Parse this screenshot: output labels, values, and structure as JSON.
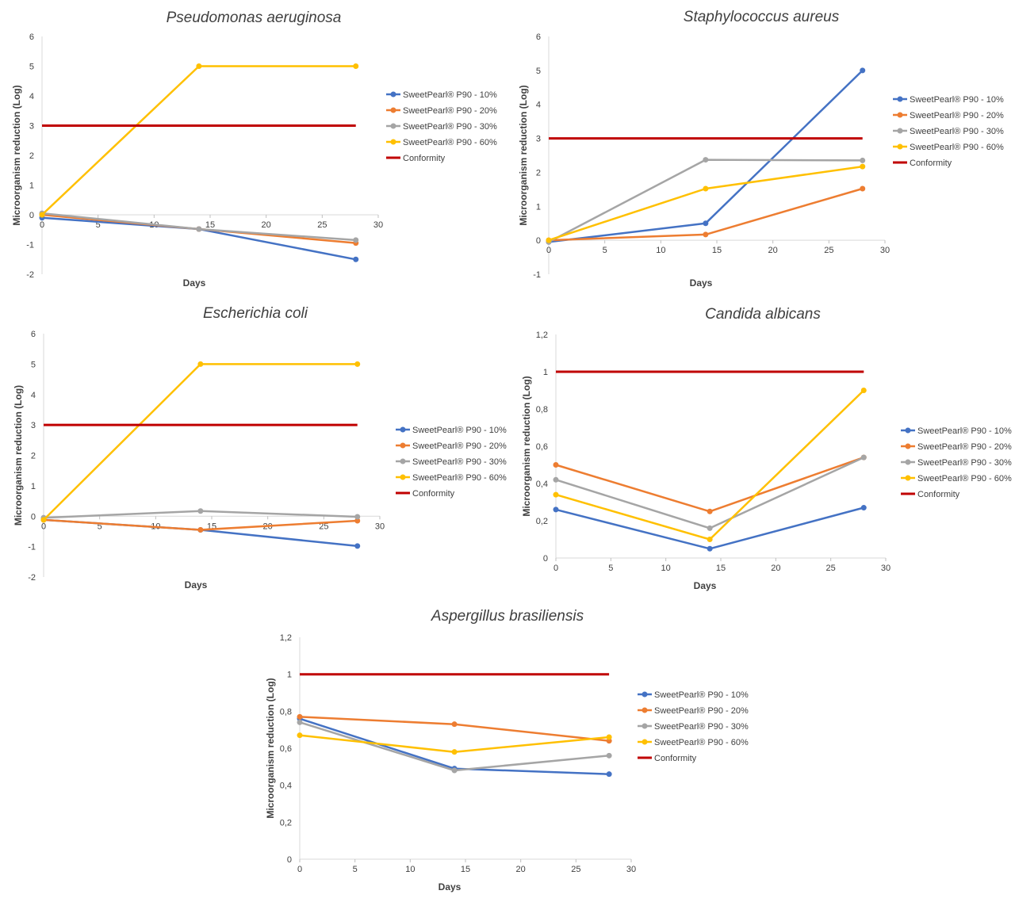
{
  "chart_data": [
    {
      "type": "line",
      "title": "Pseudomonas aeruginosa",
      "xlabel": "Days",
      "ylabel": "Microorganism reduction (Log)",
      "xlim": [
        0,
        30
      ],
      "ylim": [
        -2,
        6
      ],
      "xticks": [
        "0",
        "5",
        "10",
        "15",
        "20",
        "25",
        "30"
      ],
      "yticks": [
        "-2",
        "-1",
        "0",
        "1",
        "2",
        "3",
        "4",
        "5",
        "6"
      ],
      "x": [
        0,
        14,
        28
      ],
      "series": [
        {
          "name": "SweetPearl® P90 - 10%",
          "color": "#4472C4",
          "values": [
            -0.1,
            -0.48,
            -1.5
          ]
        },
        {
          "name": "SweetPearl® P90 - 20%",
          "color": "#ED7D31",
          "values": [
            0.0,
            -0.48,
            -0.95
          ]
        },
        {
          "name": "SweetPearl® P90 - 30%",
          "color": "#A5A5A5",
          "values": [
            0.05,
            -0.48,
            -0.85
          ]
        },
        {
          "name": "SweetPearl® P90 - 60%",
          "color": "#FFC000",
          "values": [
            0.0,
            5.0,
            5.0
          ]
        },
        {
          "name": "Conformity",
          "color": "#C00000",
          "values": [
            3,
            3,
            3
          ],
          "markers": false
        }
      ]
    },
    {
      "type": "line",
      "title": "Staphylococcus aureus",
      "xlabel": "Days",
      "ylabel": "Microorganism reduction (Log)",
      "xlim": [
        0,
        30
      ],
      "ylim": [
        -1,
        6
      ],
      "xticks": [
        "0",
        "5",
        "10",
        "15",
        "20",
        "25",
        "30"
      ],
      "yticks": [
        "-1",
        "0",
        "1",
        "2",
        "3",
        "4",
        "5",
        "6"
      ],
      "x": [
        0,
        14,
        28
      ],
      "series": [
        {
          "name": "SweetPearl® P90 - 10%",
          "color": "#4472C4",
          "values": [
            -0.05,
            0.5,
            5.0
          ]
        },
        {
          "name": "SweetPearl® P90 - 20%",
          "color": "#ED7D31",
          "values": [
            0.0,
            0.17,
            1.52
          ]
        },
        {
          "name": "SweetPearl® P90 - 30%",
          "color": "#A5A5A5",
          "values": [
            -0.05,
            2.37,
            2.35
          ]
        },
        {
          "name": "SweetPearl® P90 - 60%",
          "color": "#FFC000",
          "values": [
            0.0,
            1.52,
            2.17
          ]
        },
        {
          "name": "Conformity",
          "color": "#C00000",
          "values": [
            3,
            3,
            3
          ],
          "markers": false
        }
      ]
    },
    {
      "type": "line",
      "title": "Escherichia coli",
      "xlabel": "Days",
      "ylabel": "Microorganism reduction (Log)",
      "xlim": [
        0,
        30
      ],
      "ylim": [
        -2,
        6
      ],
      "xticks": [
        "0",
        "5",
        "10",
        "15",
        "20",
        "25",
        "30"
      ],
      "yticks": [
        "-2",
        "-1",
        "0",
        "1",
        "2",
        "3",
        "4",
        "5",
        "6"
      ],
      "x": [
        0,
        14,
        28
      ],
      "series": [
        {
          "name": "SweetPearl® P90 - 10%",
          "color": "#4472C4",
          "values": [
            -0.12,
            -0.45,
            -0.98
          ]
        },
        {
          "name": "SweetPearl® P90 - 20%",
          "color": "#ED7D31",
          "values": [
            -0.12,
            -0.45,
            -0.15
          ]
        },
        {
          "name": "SweetPearl® P90 - 30%",
          "color": "#A5A5A5",
          "values": [
            -0.05,
            0.17,
            -0.02
          ]
        },
        {
          "name": "SweetPearl® P90 - 60%",
          "color": "#FFC000",
          "values": [
            -0.12,
            5.0,
            5.0
          ]
        },
        {
          "name": "Conformity",
          "color": "#C00000",
          "values": [
            3,
            3,
            3
          ],
          "markers": false
        }
      ]
    },
    {
      "type": "line",
      "title": "Candida albicans",
      "xlabel": "Days",
      "ylabel": "Microorganism reduction (Log)",
      "xlim": [
        0,
        30
      ],
      "ylim": [
        0,
        1.2
      ],
      "xticks": [
        "0",
        "5",
        "10",
        "15",
        "20",
        "25",
        "30"
      ],
      "yticks": [
        "0",
        "0,2",
        "0,4",
        "0,6",
        "0,8",
        "1",
        "1,2"
      ],
      "x": [
        0,
        14,
        28
      ],
      "series": [
        {
          "name": "SweetPearl® P90 - 10%",
          "color": "#4472C4",
          "values": [
            0.26,
            0.05,
            0.27
          ]
        },
        {
          "name": "SweetPearl® P90 - 20%",
          "color": "#ED7D31",
          "values": [
            0.5,
            0.25,
            0.54
          ]
        },
        {
          "name": "SweetPearl® P90 - 30%",
          "color": "#A5A5A5",
          "values": [
            0.42,
            0.16,
            0.54
          ]
        },
        {
          "name": "SweetPearl® P90 - 60%",
          "color": "#FFC000",
          "values": [
            0.34,
            0.1,
            0.9
          ]
        },
        {
          "name": "Conformity",
          "color": "#C00000",
          "values": [
            1,
            1,
            1
          ],
          "markers": false
        }
      ]
    },
    {
      "type": "line",
      "title": "Aspergillus brasiliensis",
      "xlabel": "Days",
      "ylabel": "Microorganism reduction (Log)",
      "xlim": [
        0,
        30
      ],
      "ylim": [
        0,
        1.2
      ],
      "xticks": [
        "0",
        "5",
        "10",
        "15",
        "20",
        "25",
        "30"
      ],
      "yticks": [
        "0",
        "0,2",
        "0,4",
        "0,6",
        "0,8",
        "1",
        "1,2"
      ],
      "x": [
        0,
        14,
        28
      ],
      "series": [
        {
          "name": "SweetPearl® P90 - 10%",
          "color": "#4472C4",
          "values": [
            0.76,
            0.49,
            0.46
          ]
        },
        {
          "name": "SweetPearl® P90 - 20%",
          "color": "#ED7D31",
          "values": [
            0.77,
            0.73,
            0.64
          ]
        },
        {
          "name": "SweetPearl® P90 - 30%",
          "color": "#A5A5A5",
          "values": [
            0.74,
            0.48,
            0.56
          ]
        },
        {
          "name": "SweetPearl® P90 - 60%",
          "color": "#FFC000",
          "values": [
            0.67,
            0.58,
            0.66
          ]
        },
        {
          "name": "Conformity",
          "color": "#C00000",
          "values": [
            1,
            1,
            1
          ],
          "markers": false
        }
      ]
    }
  ]
}
